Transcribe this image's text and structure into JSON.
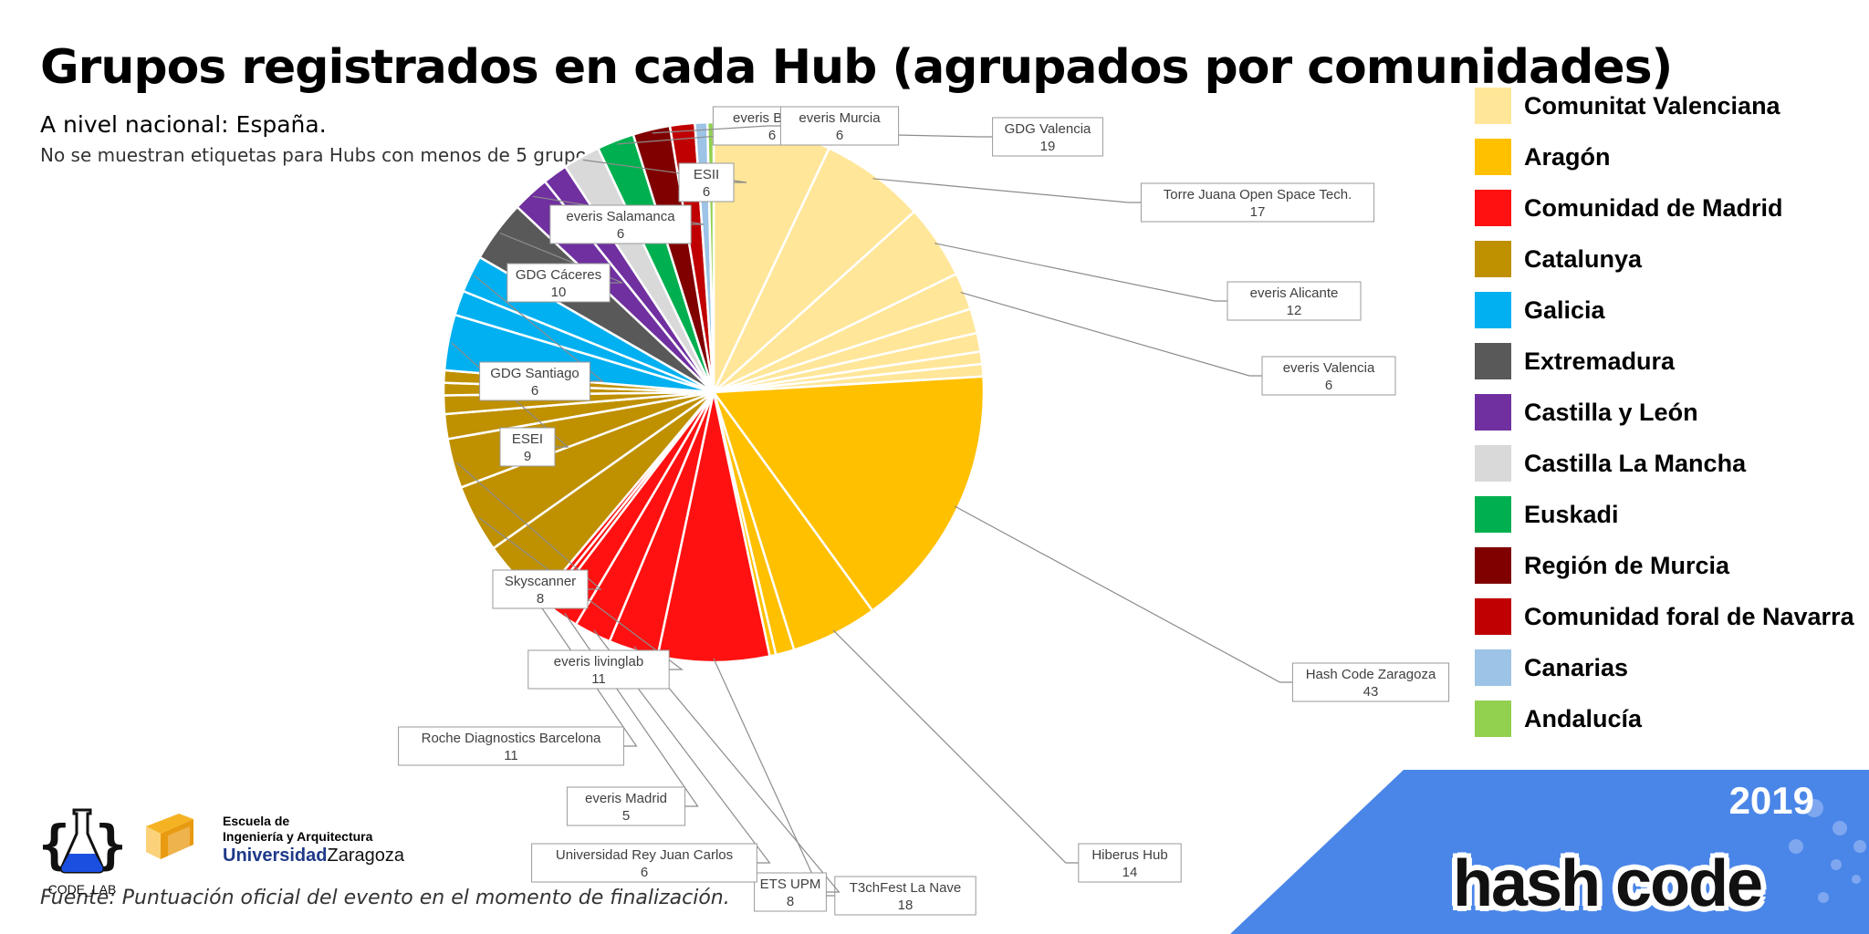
{
  "header": {
    "title": "Grupos registrados en cada Hub (agrupados por comunidades)",
    "subtitle": "A nivel nacional: España.",
    "note": "No se muestran etiquetas para Hubs con menos de 5 grupos."
  },
  "footer": {
    "source": "Fuente: Puntuación oficial del evento en el momento de finalización."
  },
  "logos": {
    "codelab_text": "CODE_LAB",
    "school_line1": "Escuela de",
    "school_line2": "Ingeniería y Arquitectura",
    "university_bold": "Universidad",
    "university_rest": "Zaragoza",
    "event_year": "2019",
    "event_name": "hash code"
  },
  "legend": [
    {
      "name": "Comunitat Valenciana",
      "color": "#FFE699"
    },
    {
      "name": "Aragón",
      "color": "#FFC000"
    },
    {
      "name": "Comunidad de Madrid",
      "color": "#FF1111"
    },
    {
      "name": "Catalunya",
      "color": "#BF9000"
    },
    {
      "name": "Galicia",
      "color": "#00B0F0"
    },
    {
      "name": "Extremadura",
      "color": "#595959"
    },
    {
      "name": "Castilla y León",
      "color": "#7030A0"
    },
    {
      "name": "Castilla La Mancha",
      "color": "#D9D9D9"
    },
    {
      "name": "Euskadi",
      "color": "#00B050"
    },
    {
      "name": "Región de Murcia",
      "color": "#800000"
    },
    {
      "name": "Comunidad foral de Navarra",
      "color": "#C00000"
    },
    {
      "name": "Canarias",
      "color": "#9DC3E6"
    },
    {
      "name": "Andalucía",
      "color": "#92D050"
    }
  ],
  "chart_data": {
    "type": "pie",
    "title": "Grupos registrados en cada Hub (agrupados por comunidades)",
    "slices": [
      {
        "label": "GDG Valencia",
        "value": 19,
        "community": "Comunitat Valenciana",
        "labeled": true
      },
      {
        "label": "Torre Juana Open Space Tech.",
        "value": 17,
        "community": "Comunitat Valenciana",
        "labeled": true
      },
      {
        "label": "everis Alicante",
        "value": 12,
        "community": "Comunitat Valenciana",
        "labeled": true
      },
      {
        "label": "everis Valencia",
        "value": 6,
        "community": "Comunitat Valenciana",
        "labeled": true
      },
      {
        "label": "",
        "value": 4,
        "community": "Comunitat Valenciana",
        "labeled": false
      },
      {
        "label": "",
        "value": 3,
        "community": "Comunitat Valenciana",
        "labeled": false
      },
      {
        "label": "",
        "value": 2,
        "community": "Comunitat Valenciana",
        "labeled": false
      },
      {
        "label": "",
        "value": 2,
        "community": "Comunitat Valenciana",
        "labeled": false
      },
      {
        "label": "Hash Code Zaragoza",
        "value": 43,
        "community": "Aragón",
        "labeled": true
      },
      {
        "label": "Hiberus Hub",
        "value": 14,
        "community": "Aragón",
        "labeled": true
      },
      {
        "label": "",
        "value": 3,
        "community": "Aragón",
        "labeled": false
      },
      {
        "label": "",
        "value": 1,
        "community": "Aragón",
        "labeled": false
      },
      {
        "label": "T3chFest La Nave",
        "value": 18,
        "community": "Comunidad de Madrid",
        "labeled": true
      },
      {
        "label": "ETS UPM",
        "value": 8,
        "community": "Comunidad de Madrid",
        "labeled": true
      },
      {
        "label": "Universidad Rey Juan Carlos",
        "value": 6,
        "community": "Comunidad de Madrid",
        "labeled": true
      },
      {
        "label": "everis Madrid",
        "value": 5,
        "community": "Comunidad de Madrid",
        "labeled": true
      },
      {
        "label": "",
        "value": 1,
        "community": "Comunidad de Madrid",
        "labeled": false
      },
      {
        "label": "",
        "value": 1,
        "community": "Comunidad de Madrid",
        "labeled": false
      },
      {
        "label": "Roche Diagnostics Barcelona",
        "value": 11,
        "community": "Catalunya",
        "labeled": true
      },
      {
        "label": "everis livinglab",
        "value": 11,
        "community": "Catalunya",
        "labeled": true
      },
      {
        "label": "Skyscanner",
        "value": 8,
        "community": "Catalunya",
        "labeled": true
      },
      {
        "label": "",
        "value": 4,
        "community": "Catalunya",
        "labeled": false
      },
      {
        "label": "",
        "value": 3,
        "community": "Catalunya",
        "labeled": false
      },
      {
        "label": "",
        "value": 2,
        "community": "Catalunya",
        "labeled": false
      },
      {
        "label": "",
        "value": 2,
        "community": "Catalunya",
        "labeled": false
      },
      {
        "label": "ESEI",
        "value": 9,
        "community": "Galicia",
        "labeled": true
      },
      {
        "label": "",
        "value": 4,
        "community": "Galicia",
        "labeled": false
      },
      {
        "label": "GDG Santiago",
        "value": 6,
        "community": "Galicia",
        "labeled": true
      },
      {
        "label": "GDG Cáceres",
        "value": 10,
        "community": "Extremadura",
        "labeled": true
      },
      {
        "label": "everis Salamanca",
        "value": 6,
        "community": "Castilla y León",
        "labeled": true
      },
      {
        "label": "",
        "value": 4,
        "community": "Castilla y León",
        "labeled": false
      },
      {
        "label": "ESII",
        "value": 6,
        "community": "Castilla La Mancha",
        "labeled": true
      },
      {
        "label": "everis Bilbao",
        "value": 6,
        "community": "Euskadi",
        "labeled": true
      },
      {
        "label": "everis Murcia",
        "value": 6,
        "community": "Región de Murcia",
        "labeled": true
      },
      {
        "label": "",
        "value": 4,
        "community": "Comunidad foral de Navarra",
        "labeled": false
      },
      {
        "label": "",
        "value": 2,
        "community": "Canarias",
        "labeled": false
      },
      {
        "label": "",
        "value": 1,
        "community": "Andalucía",
        "labeled": false
      }
    ]
  }
}
